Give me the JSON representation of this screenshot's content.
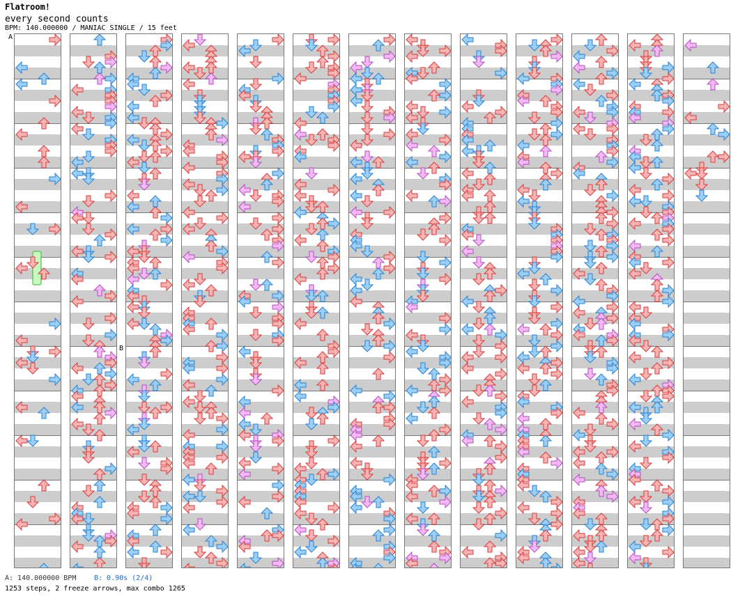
{
  "song": {
    "title": "Flatroom!",
    "artist": "every second counts",
    "info": "BPM: 140.000000 / MANIAC SINGLE / 15 feet"
  },
  "markers": {
    "a": "A",
    "b": "B"
  },
  "footer": {
    "bpm_change": "A: 140.000000 BPM",
    "stop": "B: 0.90s (2/4)",
    "stats": "1253 steps, 2 freeze arrows, max combo 1265"
  },
  "chart": {
    "columns": 13,
    "measures_per_column": 12,
    "lane_order": [
      "left",
      "down",
      "up",
      "right"
    ],
    "colors": {
      "quarter": "#f7b4b4",
      "quarter_stroke": "#d83a3a",
      "eighth": "#9ccff5",
      "eighth_stroke": "#2a7fd0",
      "sixteenth": "#f4b8f2",
      "sixteenth_stroke": "#b24fc0",
      "freeze": "#c9f7c0",
      "freeze_stroke": "#3cb030"
    }
  }
}
